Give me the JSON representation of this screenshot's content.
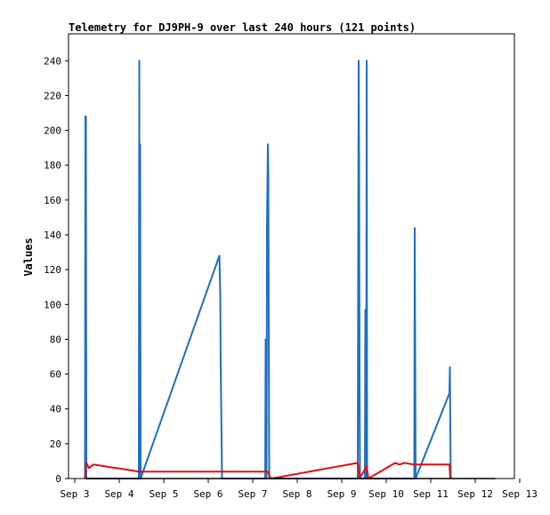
{
  "chart_data": {
    "type": "line",
    "title": "Telemetry for DJ9PH-9 over last 240 hours (121 points)",
    "ylabel": "Values",
    "xlabel": "",
    "x_tick_labels": [
      "Sep 3",
      "Sep 4",
      "Sep 5",
      "Sep 6",
      "Sep 7",
      "Sep 8",
      "Sep 9",
      "Sep 10",
      "Sep 11",
      "Sep 12",
      "Sep 13"
    ],
    "x_range_days": [
      3,
      13
    ],
    "y_ticks": [
      0,
      20,
      40,
      60,
      80,
      100,
      120,
      140,
      160,
      180,
      200,
      220,
      240
    ],
    "ylim": [
      0,
      255
    ],
    "grid": false,
    "series": [
      {
        "color": "#1f6fbf",
        "points": [
          [
            3.23,
            0
          ],
          [
            3.24,
            208
          ],
          [
            3.25,
            208
          ],
          [
            3.26,
            0
          ],
          [
            4.44,
            0
          ],
          [
            4.45,
            240
          ],
          [
            4.46,
            0
          ],
          [
            4.47,
            192
          ],
          [
            4.48,
            0
          ],
          [
            6.25,
            128
          ],
          [
            6.27,
            105
          ],
          [
            6.28,
            65
          ],
          [
            6.3,
            22
          ],
          [
            6.31,
            0
          ],
          [
            7.28,
            0
          ],
          [
            7.29,
            80
          ],
          [
            7.31,
            0
          ],
          [
            7.32,
            144
          ],
          [
            7.34,
            192
          ],
          [
            7.35,
            176
          ],
          [
            7.37,
            0
          ],
          [
            9.36,
            0
          ],
          [
            9.37,
            120
          ],
          [
            9.38,
            240
          ],
          [
            9.39,
            180
          ],
          [
            9.4,
            60
          ],
          [
            9.41,
            0
          ],
          [
            9.52,
            0
          ],
          [
            9.53,
            97
          ],
          [
            9.55,
            0
          ],
          [
            9.56,
            240
          ],
          [
            9.57,
            0
          ],
          [
            10.63,
            0
          ],
          [
            10.64,
            144
          ],
          [
            10.65,
            72
          ],
          [
            10.66,
            0
          ],
          [
            11.42,
            49
          ],
          [
            11.43,
            64
          ],
          [
            11.44,
            30
          ],
          [
            11.45,
            0
          ]
        ]
      },
      {
        "color": "#e01010",
        "points": [
          [
            3.23,
            0
          ],
          [
            3.26,
            9
          ],
          [
            3.32,
            6
          ],
          [
            3.42,
            8
          ],
          [
            4.45,
            4
          ],
          [
            7.34,
            4
          ],
          [
            7.38,
            1
          ],
          [
            7.42,
            0
          ],
          [
            9.36,
            9
          ],
          [
            9.4,
            0
          ],
          [
            9.56,
            7
          ],
          [
            9.6,
            0
          ],
          [
            10.2,
            9
          ],
          [
            10.3,
            8
          ],
          [
            10.4,
            9
          ],
          [
            10.63,
            8
          ],
          [
            11.42,
            8
          ],
          [
            11.44,
            0
          ]
        ]
      },
      {
        "color": "#000000",
        "points": [
          [
            3.23,
            0
          ],
          [
            12.45,
            0
          ]
        ]
      }
    ]
  }
}
